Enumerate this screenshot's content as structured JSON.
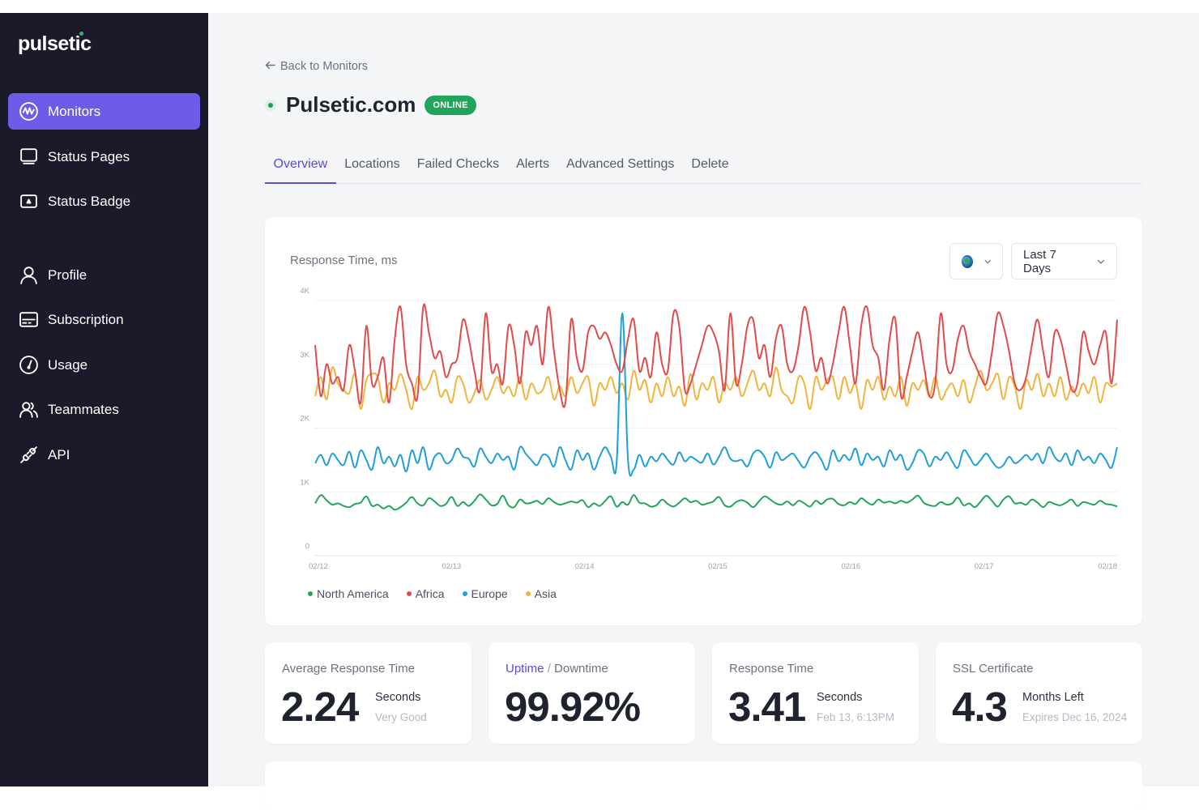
{
  "brand": {
    "name": "pulsetic"
  },
  "sidebar": {
    "items": [
      {
        "label": "Monitors",
        "icon": "pulse-icon",
        "active": true
      },
      {
        "label": "Status Pages",
        "icon": "monitor-icon"
      },
      {
        "label": "Status Badge",
        "icon": "badge-icon"
      },
      {
        "label": "Profile",
        "icon": "user-icon"
      },
      {
        "label": "Subscription",
        "icon": "card-icon"
      },
      {
        "label": "Usage",
        "icon": "gauge-icon"
      },
      {
        "label": "Teammates",
        "icon": "users-icon"
      },
      {
        "label": "API",
        "icon": "plug-icon"
      }
    ]
  },
  "header": {
    "back_label": "Back to Monitors",
    "title": "Pulsetic.com",
    "status_badge": "ONLINE",
    "status_color": "#22a55b"
  },
  "tabs": [
    {
      "label": "Overview",
      "active": true
    },
    {
      "label": "Locations"
    },
    {
      "label": "Failed Checks"
    },
    {
      "label": "Alerts"
    },
    {
      "label": "Advanced Settings"
    },
    {
      "label": "Delete"
    }
  ],
  "chart_panel": {
    "region_select_icon": "globe-icon",
    "range_select": "Last 7 Days"
  },
  "chart_data": {
    "type": "line",
    "title": "Response Time, ms",
    "xlabel": "",
    "ylabel": "",
    "ylim": [
      0,
      4000
    ],
    "y_ticks": [
      "0",
      "1K",
      "2K",
      "3K",
      "4K"
    ],
    "x_ticks": [
      "02/12",
      "02/13",
      "02/14",
      "02/15",
      "02/16",
      "02/17",
      "02/18"
    ],
    "grid": true,
    "legend_position": "bottom-left",
    "series": [
      {
        "name": "North America",
        "color": "#22a55b",
        "values": [
          820,
          950,
          870,
          800,
          820,
          780,
          760,
          810,
          830,
          930,
          780,
          800,
          740,
          780,
          720,
          760,
          830,
          920,
          820,
          790,
          900,
          850,
          780,
          810,
          920,
          780,
          840,
          780,
          860,
          960,
          880,
          790,
          810,
          940,
          790,
          760,
          880,
          820,
          830,
          860,
          810,
          900,
          840,
          800,
          820,
          850,
          830,
          870,
          760,
          820,
          780,
          860,
          930,
          770,
          840,
          800,
          950,
          830,
          820,
          770,
          790,
          880,
          810,
          770,
          830,
          900,
          840,
          860,
          800,
          820,
          850,
          920,
          790,
          770,
          840,
          870,
          830,
          760,
          850,
          930,
          880,
          820,
          800,
          850,
          790,
          860,
          820,
          770,
          860,
          810,
          880,
          890,
          810,
          790,
          840,
          810,
          900,
          840,
          800,
          880,
          830,
          850,
          820,
          860,
          830,
          880,
          940,
          830,
          790,
          780,
          840,
          800,
          820,
          910,
          790,
          820,
          760,
          850,
          940,
          860,
          770,
          880,
          930,
          820,
          830,
          800,
          880,
          830,
          760,
          840,
          810,
          790,
          830,
          880,
          780,
          840,
          820,
          800,
          860,
          810,
          800,
          770
        ]
      },
      {
        "name": "Africa",
        "color": "#e04b4b",
        "values": [
          3300,
          2500,
          3000,
          2700,
          2800,
          2600,
          3300,
          2900,
          2400,
          3600,
          2700,
          2800,
          3100,
          2400,
          3400,
          3900,
          3000,
          2700,
          2500,
          3900,
          3500,
          3100,
          3200,
          2800,
          3000,
          3100,
          3700,
          3400,
          2900,
          2600,
          3800,
          2900,
          3000,
          2700,
          3600,
          3300,
          2700,
          3500,
          3300,
          3600,
          3000,
          3900,
          3200,
          2600,
          2400,
          3700,
          3100,
          2900,
          3500,
          3600,
          3400,
          3500,
          3300,
          3000,
          2900,
          3400,
          3700,
          2900,
          3100,
          2800,
          3500,
          3000,
          2900,
          3800,
          3600,
          2600,
          2700,
          3000,
          3300,
          3600,
          3500,
          3200,
          2600,
          3800,
          2700,
          3000,
          3600,
          3700,
          3100,
          3300,
          2800,
          3400,
          3600,
          3000,
          2900,
          3300,
          3900,
          3500,
          2900,
          3100,
          2700,
          3000,
          3500,
          3900,
          3300,
          2700,
          3600,
          3900,
          3300,
          3100,
          2600,
          3400,
          3700,
          2500,
          2800,
          3200,
          3500,
          3000,
          2500,
          2700,
          3800,
          3000,
          2900,
          3400,
          3600,
          3200,
          3000,
          2800,
          2700,
          3200,
          3800,
          3600,
          3200,
          2700,
          2600,
          2800,
          3300,
          3700,
          3200,
          2800,
          3500,
          3400,
          3000,
          2600,
          2700,
          3500,
          3200,
          3000,
          3300,
          3500,
          2700,
          3700
        ]
      },
      {
        "name": "Europe",
        "color": "#1f9ed9",
        "values": [
          1450,
          1580,
          1420,
          1600,
          1500,
          1420,
          1630,
          1380,
          1650,
          1500,
          1350,
          1700,
          1450,
          1550,
          1400,
          1580,
          1320,
          1650,
          1450,
          1700,
          1350,
          1550,
          1600,
          1450,
          1500,
          1680,
          1550,
          1520,
          1400,
          1680,
          1550,
          1450,
          1600,
          1500,
          1550,
          1350,
          1700,
          1600,
          1500,
          1420,
          1580,
          1550,
          1400,
          1700,
          1500,
          1350,
          1650,
          1500,
          1600,
          1350,
          1550,
          1700,
          1550,
          1450,
          3800,
          1500,
          1350,
          1580,
          1400,
          1550,
          1480,
          1600,
          1500,
          1430,
          1620,
          1480,
          1550,
          1500,
          1460,
          1600,
          1430,
          1550,
          1700,
          1520,
          1480,
          1500,
          1400,
          1600,
          1650,
          1550,
          1380,
          1620,
          1500,
          1550,
          1600,
          1480,
          1380,
          1550,
          1620,
          1500,
          1350,
          1650,
          1480,
          1580,
          1500,
          1680,
          1420,
          1600,
          1500,
          1550,
          1400,
          1650,
          1500,
          1580,
          1350,
          1450,
          1650,
          1600,
          1400,
          1550,
          1500,
          1620,
          1480,
          1380,
          1650,
          1550,
          1420,
          1500,
          1600,
          1480,
          1380,
          1420,
          1550,
          1450,
          1500,
          1580,
          1500,
          1600,
          1450,
          1700,
          1550,
          1480,
          1600,
          1420,
          1650,
          1500,
          1550,
          1450,
          1600,
          1500,
          1380,
          1700
        ]
      },
      {
        "name": "Asia",
        "color": "#f2b33d",
        "values": [
          2500,
          2800,
          2450,
          2950,
          2700,
          2600,
          2550,
          2850,
          2300,
          2750,
          2850,
          2800,
          2400,
          2700,
          2600,
          2850,
          2600,
          2300,
          2800,
          2600,
          2700,
          2900,
          2500,
          2600,
          2400,
          2800,
          2700,
          2400,
          2550,
          2750,
          2450,
          2600,
          2800,
          2550,
          2650,
          2500,
          2800,
          2450,
          2700,
          2550,
          2600,
          2800,
          2450,
          2650,
          2500,
          2800,
          2550,
          2700,
          2800,
          2350,
          2700,
          2600,
          2800,
          2550,
          2700,
          2450,
          2900,
          2600,
          2750,
          2400,
          2700,
          2500,
          2800,
          2500,
          2650,
          2350,
          2850,
          2450,
          2700,
          2600,
          2800,
          2400,
          2700,
          2600,
          2800,
          2500,
          2700,
          2900,
          2600,
          2700,
          2500,
          2950,
          2600,
          2500,
          2400,
          2800,
          2700,
          2300,
          2800,
          2600,
          2750,
          2800,
          2450,
          2800,
          2550,
          2700,
          2300,
          2750,
          2600,
          2800,
          2450,
          2650,
          2500,
          2800,
          2350,
          2700,
          2600,
          2750,
          2500,
          2800,
          2450,
          2600,
          2700,
          2500,
          2750,
          2400,
          2650,
          2900,
          2600,
          2700,
          2850,
          2450,
          2800,
          2650,
          2300,
          2750,
          2600,
          2850,
          2500,
          2700,
          2500,
          2800,
          2450,
          2650,
          2500,
          2700,
          2550,
          2800,
          2400,
          2700,
          2650,
          2700
        ]
      }
    ]
  },
  "stats": [
    {
      "label": "Average Response Time",
      "value": "2.24",
      "unit": "Seconds",
      "note": "Very Good"
    },
    {
      "label_hl": "Uptime",
      "label_sep": "/",
      "label_rest": "Downtime",
      "value": "99.92%"
    },
    {
      "label": "Response Time",
      "value": "3.41",
      "unit": "Seconds",
      "note": "Feb 13, 6:13PM"
    },
    {
      "label": "SSL Certificate",
      "value": "4.3",
      "unit": "Months Left",
      "note": "Expires Dec 16, 2024"
    }
  ]
}
